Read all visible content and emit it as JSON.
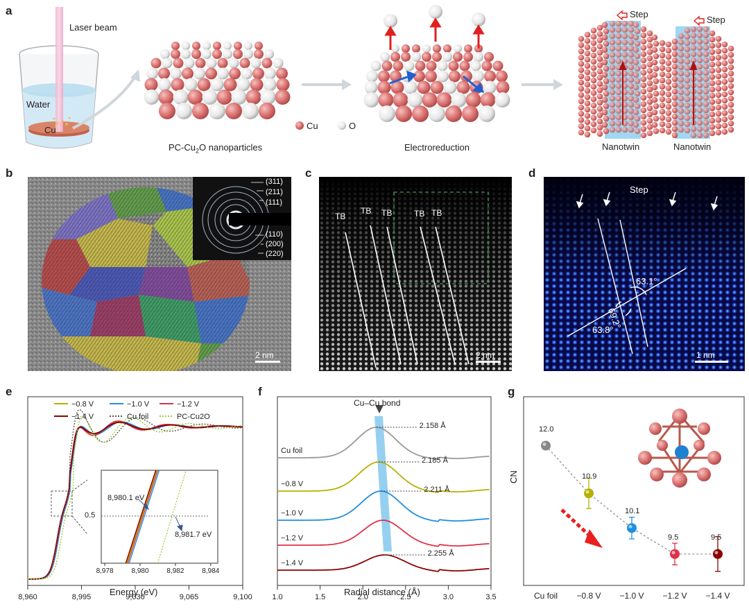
{
  "panels": {
    "a": {
      "label": "a",
      "laser_beam": "Laser beam",
      "water": "Water",
      "cu_target": "Cu",
      "nanoparticles_caption": "PC-Cu2O nanoparticles",
      "nanoparticles_caption_main": "PC-Cu",
      "nanoparticles_caption_sub": "2",
      "nanoparticles_caption_end": "O nanoparticles",
      "electroreduction": "Electroreduction",
      "legend_cu": "Cu",
      "legend_o": "O",
      "step_1": "Step",
      "step_2": "Step",
      "nanotwin_1": "Nanotwin",
      "nanotwin_2": "Nanotwin",
      "colors": {
        "cu": "#d9706e",
        "o": "#e8e8e8",
        "twin_band": "#8fd0ee",
        "arrow": "#e02020"
      }
    },
    "b": {
      "label": "b",
      "planes_top": [
        "(311)",
        "(211)",
        "(111)"
      ],
      "planes_bottom": [
        "(110)",
        "(200)",
        "(220)"
      ],
      "scale_bar": "2 nm"
    },
    "c": {
      "label": "c",
      "tb_labels": [
        "TB",
        "TB",
        "TB",
        "TB",
        "TB"
      ],
      "scale_bar": "2 nm"
    },
    "d": {
      "label": "d",
      "step": "Step",
      "angles": [
        "63.1°",
        "69.2°",
        "63.8°"
      ],
      "scale_bar": "1 nm"
    },
    "e": {
      "label": "e",
      "xlabel": "Energy (eV)",
      "xticks": [
        "8,960",
        "8,995",
        "9,030",
        "9,065",
        "9,100"
      ],
      "legend": [
        {
          "name": "−0.8 V",
          "color": "#b8b000",
          "style": "solid"
        },
        {
          "name": "−1.0 V",
          "color": "#1f8fe0",
          "style": "solid"
        },
        {
          "name": "−1.2 V",
          "color": "#e0304a",
          "style": "solid"
        },
        {
          "name": "−1.4 V",
          "color": "#8b0000",
          "style": "solid"
        },
        {
          "name": "Cu foil",
          "color": "#555555",
          "style": "dotted"
        },
        {
          "name": "PC-Cu2O",
          "color": "#9acd32",
          "style": "dotted"
        }
      ],
      "inset": {
        "xticks": [
          "8,978",
          "8,980",
          "8,982",
          "8,984"
        ],
        "y_label": "0.5",
        "ann_1": "8,980.1 eV",
        "ann_2": "8,981.7 eV"
      }
    },
    "f": {
      "label": "f",
      "xlabel": "Radial distance (Å)",
      "xticks": [
        "1.0",
        "1.5",
        "2.0",
        "2.5",
        "3.0",
        "3.5"
      ],
      "bond_label": "Cu–Cu bond",
      "curves": [
        {
          "name": "Cu foil",
          "color": "#999999",
          "peak_label": "2.158 Å"
        },
        {
          "name": "−0.8 V",
          "color": "#b8b000",
          "peak_label": "2.185 Å"
        },
        {
          "name": "−1.0 V",
          "color": "#1f8fe0",
          "peak_label": "2.211 Å"
        },
        {
          "name": "−1.2 V",
          "color": "#e0304a",
          "peak_label": ""
        },
        {
          "name": "−1.4 V",
          "color": "#8b0000",
          "peak_label": "2.255 Å"
        }
      ]
    },
    "g": {
      "label": "g",
      "ylabel": "CN",
      "points": [
        {
          "category": "Cu foil",
          "value": 12.0,
          "label": "12.0",
          "color": "#888888"
        },
        {
          "category": "−0.8 V",
          "value": 10.9,
          "label": "10.9",
          "color": "#b8b000"
        },
        {
          "category": "−1.0 V",
          "value": 10.1,
          "label": "10.1",
          "color": "#1f8fe0"
        },
        {
          "category": "−1.2 V",
          "value": 9.5,
          "label": "9.5",
          "color": "#e0304a"
        },
        {
          "category": "−1.4 V",
          "value": 9.5,
          "label": "9.5",
          "color": "#8b0000"
        }
      ]
    }
  },
  "chart_data": [
    {
      "type": "line",
      "panel": "e",
      "xlabel": "Energy (eV)",
      "xlim": [
        8960,
        9100
      ],
      "series": [
        {
          "name": "−0.8 V"
        },
        {
          "name": "−1.0 V"
        },
        {
          "name": "−1.2 V"
        },
        {
          "name": "−1.4 V"
        },
        {
          "name": "Cu foil"
        },
        {
          "name": "PC-Cu2O"
        }
      ]
    },
    {
      "type": "line",
      "panel": "f",
      "xlabel": "Radial distance (Å)",
      "xlim": [
        1.0,
        3.5
      ],
      "series": [
        {
          "name": "Cu foil",
          "peak_x": 2.158
        },
        {
          "name": "−0.8 V",
          "peak_x": 2.185
        },
        {
          "name": "−1.0 V",
          "peak_x": 2.211
        },
        {
          "name": "−1.2 V"
        },
        {
          "name": "−1.4 V",
          "peak_x": 2.255
        }
      ]
    },
    {
      "type": "scatter",
      "panel": "g",
      "ylabel": "CN",
      "categories": [
        "Cu foil",
        "−0.8 V",
        "−1.0 V",
        "−1.2 V",
        "−1.4 V"
      ],
      "values": [
        12.0,
        10.9,
        10.1,
        9.5,
        9.5
      ]
    }
  ]
}
